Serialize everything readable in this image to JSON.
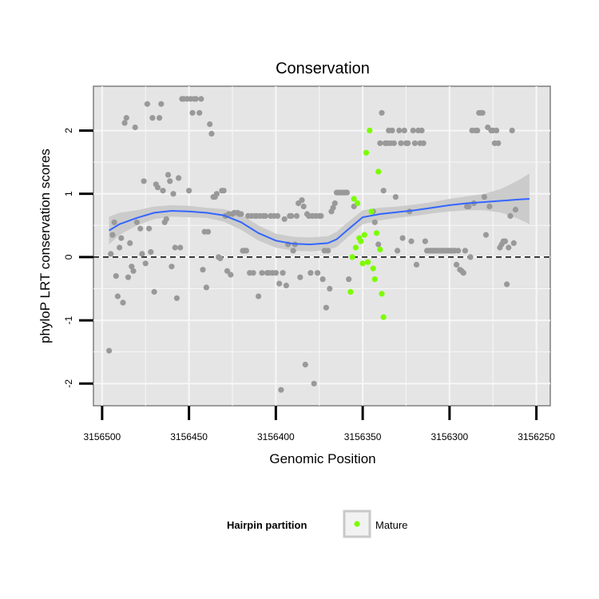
{
  "chart_data": {
    "type": "scatter",
    "title": "Conservation",
    "xlabel": "Genomic Position",
    "ylabel": "phyloP LRT conservation scores",
    "x_reversed": true,
    "xlim": [
      3156505,
      3156242
    ],
    "ylim": [
      -2.35,
      2.7
    ],
    "x_ticks": [
      3156500,
      3156450,
      3156400,
      3156350,
      3156300,
      3156250
    ],
    "x_tick_labels": [
      "3156500",
      "3156450",
      "3156400",
      "3156350",
      "3156300",
      "3156250"
    ],
    "y_ticks": [
      -2,
      -1,
      0,
      1,
      2
    ],
    "y_tick_labels": [
      "-2",
      "-1",
      "0",
      "1",
      "2"
    ],
    "grid": true,
    "reference_line": {
      "y": 0,
      "style": "dashed"
    },
    "legend": {
      "title": "Hairpin partition",
      "position": "bottom",
      "entries": [
        {
          "label": "Mature",
          "color": "#7cfc00"
        }
      ]
    },
    "colors": {
      "background": "#e5e5e5",
      "points": "#999999",
      "mature": "#7cfc00",
      "smooth": "#3366ff",
      "ribbon": "#c8c8c8"
    },
    "series": [
      {
        "name": "",
        "color": "#999999",
        "points": [
          [
            3156496,
            -1.48
          ],
          [
            3156495,
            0.05
          ],
          [
            3156494,
            0.35
          ],
          [
            3156493,
            0.55
          ],
          [
            3156492,
            -0.3
          ],
          [
            3156491,
            -0.62
          ],
          [
            3156490,
            0.15
          ],
          [
            3156489,
            0.3
          ],
          [
            3156488,
            -0.72
          ],
          [
            3156487,
            2.12
          ],
          [
            3156486,
            2.2
          ],
          [
            3156485,
            -0.32
          ],
          [
            3156484,
            0.22
          ],
          [
            3156483,
            -0.15
          ],
          [
            3156482,
            -0.22
          ],
          [
            3156481,
            2.05
          ],
          [
            3156480,
            0.55
          ],
          [
            3156478,
            0.45
          ],
          [
            3156477,
            0.05
          ],
          [
            3156476,
            1.2
          ],
          [
            3156475,
            -0.1
          ],
          [
            3156474,
            2.42
          ],
          [
            3156473,
            0.45
          ],
          [
            3156472,
            0.08
          ],
          [
            3156471,
            2.2
          ],
          [
            3156470,
            -0.55
          ],
          [
            3156469,
            1.15
          ],
          [
            3156468,
            1.1
          ],
          [
            3156467,
            2.2
          ],
          [
            3156466,
            2.42
          ],
          [
            3156465,
            1.05
          ],
          [
            3156464,
            0.55
          ],
          [
            3156463,
            0.6
          ],
          [
            3156462,
            1.3
          ],
          [
            3156461,
            1.2
          ],
          [
            3156460,
            -0.15
          ],
          [
            3156459,
            1.0
          ],
          [
            3156458,
            0.15
          ],
          [
            3156457,
            -0.65
          ],
          [
            3156456,
            1.25
          ],
          [
            3156455,
            0.15
          ],
          [
            3156454,
            2.5
          ],
          [
            3156453,
            2.5
          ],
          [
            3156451,
            2.5
          ],
          [
            3156450,
            1.05
          ],
          [
            3156449,
            2.5
          ],
          [
            3156448,
            2.28
          ],
          [
            3156447,
            2.5
          ],
          [
            3156446,
            2.5
          ],
          [
            3156444,
            2.28
          ],
          [
            3156443,
            2.5
          ],
          [
            3156442,
            -0.2
          ],
          [
            3156441,
            0.4
          ],
          [
            3156440,
            -0.48
          ],
          [
            3156439,
            0.4
          ],
          [
            3156438,
            2.1
          ],
          [
            3156437,
            1.95
          ],
          [
            3156436,
            0.95
          ],
          [
            3156435,
            0.95
          ],
          [
            3156434,
            1.0
          ],
          [
            3156433,
            0.0
          ],
          [
            3156432,
            -0.02
          ],
          [
            3156431,
            1.05
          ],
          [
            3156430,
            1.05
          ],
          [
            3156429,
            0.65
          ],
          [
            3156428,
            -0.22
          ],
          [
            3156427,
            0.68
          ],
          [
            3156426,
            -0.28
          ],
          [
            3156425,
            0.68
          ],
          [
            3156424,
            0.7
          ],
          [
            3156422,
            0.7
          ],
          [
            3156421,
            0.68
          ],
          [
            3156420,
            0.68
          ],
          [
            3156419,
            0.1
          ],
          [
            3156418,
            0.1
          ],
          [
            3156417,
            0.1
          ],
          [
            3156416,
            0.65
          ],
          [
            3156415,
            -0.25
          ],
          [
            3156414,
            0.65
          ],
          [
            3156413,
            -0.25
          ],
          [
            3156412,
            0.65
          ],
          [
            3156411,
            0.65
          ],
          [
            3156410,
            -0.62
          ],
          [
            3156409,
            0.65
          ],
          [
            3156408,
            -0.25
          ],
          [
            3156407,
            0.65
          ],
          [
            3156406,
            0.65
          ],
          [
            3156405,
            -0.25
          ],
          [
            3156404,
            -0.25
          ],
          [
            3156403,
            0.65
          ],
          [
            3156402,
            -0.25
          ],
          [
            3156401,
            0.65
          ],
          [
            3156400,
            -0.25
          ],
          [
            3156399,
            0.65
          ],
          [
            3156398,
            -0.42
          ],
          [
            3156397,
            -2.1
          ],
          [
            3156396,
            -0.25
          ],
          [
            3156395,
            0.6
          ],
          [
            3156394,
            -0.45
          ],
          [
            3156393,
            0.2
          ],
          [
            3156392,
            0.65
          ],
          [
            3156391,
            0.65
          ],
          [
            3156390,
            0.1
          ],
          [
            3156389,
            0.2
          ],
          [
            3156388,
            0.65
          ],
          [
            3156387,
            0.85
          ],
          [
            3156386,
            -0.32
          ],
          [
            3156385,
            0.9
          ],
          [
            3156384,
            0.8
          ],
          [
            3156383,
            -1.7
          ],
          [
            3156382,
            0.68
          ],
          [
            3156381,
            0.65
          ],
          [
            3156380,
            -0.25
          ],
          [
            3156379,
            0.65
          ],
          [
            3156378,
            -2.0
          ],
          [
            3156377,
            0.65
          ],
          [
            3156376,
            -0.25
          ],
          [
            3156375,
            0.65
          ],
          [
            3156374,
            0.65
          ],
          [
            3156373,
            -0.35
          ],
          [
            3156372,
            0.1
          ],
          [
            3156371,
            -0.8
          ],
          [
            3156370,
            0.1
          ],
          [
            3156369,
            -0.5
          ],
          [
            3156368,
            0.72
          ],
          [
            3156367,
            0.78
          ],
          [
            3156366,
            0.85
          ],
          [
            3156365,
            1.02
          ],
          [
            3156364,
            1.02
          ],
          [
            3156363,
            1.02
          ],
          [
            3156362,
            1.02
          ],
          [
            3156361,
            1.02
          ],
          [
            3156360,
            1.02
          ],
          [
            3156359,
            1.02
          ],
          [
            3156358,
            -0.35
          ],
          [
            3156355,
            0.8
          ],
          [
            3156344,
            0.72
          ],
          [
            3156343,
            0.55
          ],
          [
            3156341,
            0.2
          ],
          [
            3156340,
            1.8
          ],
          [
            3156339,
            2.28
          ],
          [
            3156338,
            1.05
          ],
          [
            3156337,
            1.8
          ],
          [
            3156336,
            1.8
          ],
          [
            3156335,
            2.0
          ],
          [
            3156334,
            1.8
          ],
          [
            3156333,
            2.0
          ],
          [
            3156332,
            1.8
          ],
          [
            3156331,
            0.95
          ],
          [
            3156330,
            0.1
          ],
          [
            3156329,
            2.0
          ],
          [
            3156328,
            1.8
          ],
          [
            3156327,
            0.3
          ],
          [
            3156326,
            2.0
          ],
          [
            3156325,
            1.8
          ],
          [
            3156324,
            1.8
          ],
          [
            3156323,
            0.72
          ],
          [
            3156322,
            0.25
          ],
          [
            3156321,
            2.0
          ],
          [
            3156320,
            1.8
          ],
          [
            3156319,
            -0.12
          ],
          [
            3156318,
            2.0
          ],
          [
            3156317,
            1.8
          ],
          [
            3156316,
            2.0
          ],
          [
            3156315,
            1.8
          ],
          [
            3156314,
            0.25
          ],
          [
            3156313,
            0.1
          ],
          [
            3156312,
            0.1
          ],
          [
            3156311,
            0.1
          ],
          [
            3156310,
            0.1
          ],
          [
            3156309,
            0.1
          ],
          [
            3156308,
            0.1
          ],
          [
            3156307,
            0.1
          ],
          [
            3156306,
            0.1
          ],
          [
            3156305,
            0.1
          ],
          [
            3156304,
            0.1
          ],
          [
            3156303,
            0.1
          ],
          [
            3156302,
            0.1
          ],
          [
            3156301,
            0.1
          ],
          [
            3156300,
            0.1
          ],
          [
            3156299,
            0.1
          ],
          [
            3156298,
            0.1
          ],
          [
            3156297,
            0.1
          ],
          [
            3156296,
            -0.12
          ],
          [
            3156295,
            0.1
          ],
          [
            3156294,
            -0.2
          ],
          [
            3156293,
            -0.22
          ],
          [
            3156292,
            -0.25
          ],
          [
            3156291,
            0.1
          ],
          [
            3156290,
            0.8
          ],
          [
            3156289,
            0.8
          ],
          [
            3156288,
            0.0
          ],
          [
            3156287,
            2.0
          ],
          [
            3156286,
            0.85
          ],
          [
            3156285,
            2.0
          ],
          [
            3156284,
            2.0
          ],
          [
            3156283,
            2.28
          ],
          [
            3156282,
            2.28
          ],
          [
            3156281,
            2.28
          ],
          [
            3156280,
            0.95
          ],
          [
            3156279,
            0.35
          ],
          [
            3156278,
            2.05
          ],
          [
            3156277,
            0.8
          ],
          [
            3156276,
            2.0
          ],
          [
            3156275,
            2.0
          ],
          [
            3156274,
            1.8
          ],
          [
            3156273,
            2.0
          ],
          [
            3156272,
            1.8
          ],
          [
            3156271,
            0.15
          ],
          [
            3156270,
            0.2
          ],
          [
            3156269,
            0.25
          ],
          [
            3156268,
            0.25
          ],
          [
            3156267,
            -0.43
          ],
          [
            3156266,
            0.15
          ],
          [
            3156265,
            0.65
          ],
          [
            3156264,
            2.0
          ],
          [
            3156263,
            0.22
          ],
          [
            3156262,
            0.75
          ]
        ]
      },
      {
        "name": "Mature",
        "color": "#7cfc00",
        "points": [
          [
            3156357,
            -0.55
          ],
          [
            3156356,
            0.0
          ],
          [
            3156355,
            0.92
          ],
          [
            3156354,
            0.15
          ],
          [
            3156353,
            0.85
          ],
          [
            3156352,
            0.3
          ],
          [
            3156351,
            0.25
          ],
          [
            3156350,
            -0.1
          ],
          [
            3156349,
            0.35
          ],
          [
            3156348,
            1.65
          ],
          [
            3156347,
            -0.08
          ],
          [
            3156346,
            2.0
          ],
          [
            3156345,
            0.72
          ],
          [
            3156344,
            -0.18
          ],
          [
            3156343,
            -0.35
          ],
          [
            3156342,
            0.38
          ],
          [
            3156341,
            1.35
          ],
          [
            3156340,
            0.12
          ],
          [
            3156339,
            -0.58
          ],
          [
            3156338,
            -0.95
          ]
        ]
      }
    ],
    "smooth": {
      "x": [
        3156496,
        3156490,
        3156480,
        3156470,
        3156460,
        3156450,
        3156440,
        3156430,
        3156420,
        3156410,
        3156400,
        3156390,
        3156380,
        3156370,
        3156365,
        3156360,
        3156350,
        3156340,
        3156330,
        3156320,
        3156310,
        3156300,
        3156290,
        3156280,
        3156270,
        3156260,
        3156254
      ],
      "y": [
        0.42,
        0.52,
        0.62,
        0.7,
        0.73,
        0.72,
        0.7,
        0.66,
        0.55,
        0.38,
        0.26,
        0.21,
        0.2,
        0.22,
        0.28,
        0.4,
        0.63,
        0.68,
        0.71,
        0.74,
        0.78,
        0.82,
        0.85,
        0.87,
        0.89,
        0.91,
        0.92
      ],
      "low": [
        0.2,
        0.35,
        0.5,
        0.6,
        0.64,
        0.63,
        0.62,
        0.56,
        0.43,
        0.26,
        0.15,
        0.1,
        0.09,
        0.11,
        0.16,
        0.28,
        0.52,
        0.58,
        0.62,
        0.65,
        0.69,
        0.72,
        0.74,
        0.74,
        0.7,
        0.6,
        0.52
      ],
      "high": [
        0.64,
        0.7,
        0.74,
        0.8,
        0.82,
        0.81,
        0.78,
        0.76,
        0.67,
        0.5,
        0.37,
        0.32,
        0.31,
        0.33,
        0.4,
        0.52,
        0.74,
        0.78,
        0.8,
        0.83,
        0.87,
        0.92,
        0.96,
        1.0,
        1.08,
        1.22,
        1.32
      ]
    }
  }
}
